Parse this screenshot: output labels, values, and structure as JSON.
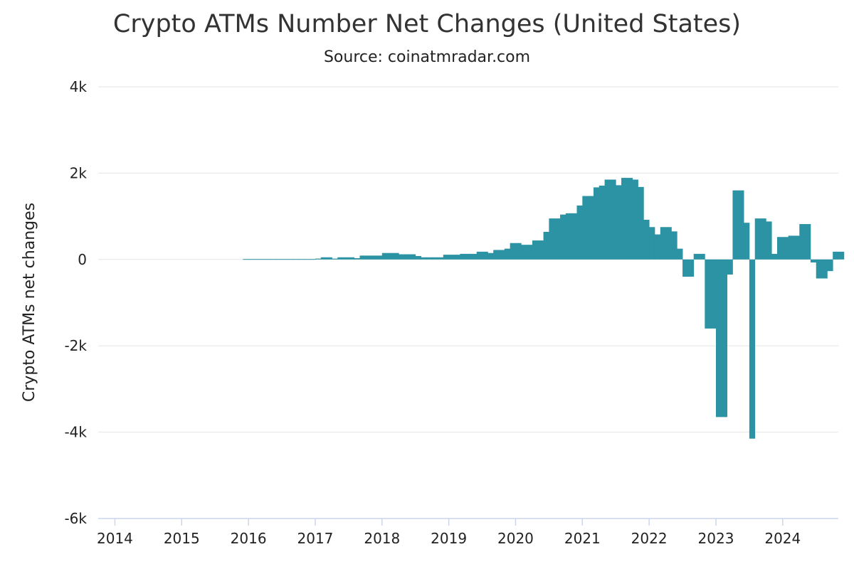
{
  "chart_data": {
    "type": "bar",
    "title": "Crypto ATMs Number Net Changes (United States)",
    "subtitle": "Source: coinatmradar.com",
    "ylabel": "Crypto ATMs net changes",
    "xlabel": "",
    "ylim": [
      -6000,
      4000
    ],
    "yticks": [
      {
        "value": 4000,
        "label": "4k"
      },
      {
        "value": 2000,
        "label": "2k"
      },
      {
        "value": 0,
        "label": "0"
      },
      {
        "value": -2000,
        "label": "-2k"
      },
      {
        "value": -4000,
        "label": "-4k"
      },
      {
        "value": -6000,
        "label": "-6k"
      }
    ],
    "xlim": [
      "2013-10",
      "2024-10"
    ],
    "xticks": [
      "2014",
      "2015",
      "2016",
      "2017",
      "2018",
      "2019",
      "2020",
      "2021",
      "2022",
      "2023",
      "2024"
    ],
    "grid": true,
    "color": "#2b93a3",
    "series": [
      {
        "points": [
          {
            "x": "2015-12",
            "y": 10
          },
          {
            "x": "2016-01",
            "y": 10
          },
          {
            "x": "2016-02",
            "y": 10
          },
          {
            "x": "2016-03",
            "y": 10
          },
          {
            "x": "2016-04",
            "y": 10
          },
          {
            "x": "2016-05",
            "y": 10
          },
          {
            "x": "2016-06",
            "y": 10
          },
          {
            "x": "2016-07",
            "y": 10
          },
          {
            "x": "2016-08",
            "y": 10
          },
          {
            "x": "2016-09",
            "y": 10
          },
          {
            "x": "2016-10",
            "y": 10
          },
          {
            "x": "2016-11",
            "y": 10
          },
          {
            "x": "2016-12",
            "y": 10
          },
          {
            "x": "2017-01",
            "y": 20
          },
          {
            "x": "2017-02",
            "y": 50
          },
          {
            "x": "2017-03",
            "y": 50
          },
          {
            "x": "2017-04",
            "y": 20
          },
          {
            "x": "2017-05",
            "y": 50
          },
          {
            "x": "2017-06",
            "y": 50
          },
          {
            "x": "2017-07",
            "y": 50
          },
          {
            "x": "2017-08",
            "y": 30
          },
          {
            "x": "2017-09",
            "y": 90
          },
          {
            "x": "2017-10",
            "y": 90
          },
          {
            "x": "2017-11",
            "y": 90
          },
          {
            "x": "2017-12",
            "y": 90
          },
          {
            "x": "2018-01",
            "y": 150
          },
          {
            "x": "2018-02",
            "y": 150
          },
          {
            "x": "2018-03",
            "y": 150
          },
          {
            "x": "2018-04",
            "y": 120
          },
          {
            "x": "2018-05",
            "y": 120
          },
          {
            "x": "2018-06",
            "y": 120
          },
          {
            "x": "2018-07",
            "y": 80
          },
          {
            "x": "2018-08",
            "y": 50
          },
          {
            "x": "2018-09",
            "y": 50
          },
          {
            "x": "2018-10",
            "y": 50
          },
          {
            "x": "2018-11",
            "y": 50
          },
          {
            "x": "2018-12",
            "y": 110
          },
          {
            "x": "2019-01",
            "y": 110
          },
          {
            "x": "2019-02",
            "y": 110
          },
          {
            "x": "2019-03",
            "y": 130
          },
          {
            "x": "2019-04",
            "y": 130
          },
          {
            "x": "2019-05",
            "y": 130
          },
          {
            "x": "2019-06",
            "y": 180
          },
          {
            "x": "2019-07",
            "y": 180
          },
          {
            "x": "2019-08",
            "y": 150
          },
          {
            "x": "2019-09",
            "y": 220
          },
          {
            "x": "2019-10",
            "y": 220
          },
          {
            "x": "2019-11",
            "y": 250
          },
          {
            "x": "2019-12",
            "y": 380
          },
          {
            "x": "2020-01",
            "y": 380
          },
          {
            "x": "2020-02",
            "y": 340
          },
          {
            "x": "2020-03",
            "y": 340
          },
          {
            "x": "2020-04",
            "y": 440
          },
          {
            "x": "2020-05",
            "y": 440
          },
          {
            "x": "2020-06",
            "y": 640
          },
          {
            "x": "2020-07",
            "y": 950
          },
          {
            "x": "2020-08",
            "y": 950
          },
          {
            "x": "2020-09",
            "y": 1040
          },
          {
            "x": "2020-10",
            "y": 1070
          },
          {
            "x": "2020-11",
            "y": 1070
          },
          {
            "x": "2020-12",
            "y": 1250
          },
          {
            "x": "2021-01",
            "y": 1470
          },
          {
            "x": "2021-02",
            "y": 1470
          },
          {
            "x": "2021-03",
            "y": 1670
          },
          {
            "x": "2021-04",
            "y": 1710
          },
          {
            "x": "2021-05",
            "y": 1850
          },
          {
            "x": "2021-06",
            "y": 1850
          },
          {
            "x": "2021-07",
            "y": 1720
          },
          {
            "x": "2021-08",
            "y": 1890
          },
          {
            "x": "2021-09",
            "y": 1890
          },
          {
            "x": "2021-10",
            "y": 1850
          },
          {
            "x": "2021-11",
            "y": 1680
          },
          {
            "x": "2021-12",
            "y": 920
          },
          {
            "x": "2022-01",
            "y": 750
          },
          {
            "x": "2022-02",
            "y": 580
          },
          {
            "x": "2022-03",
            "y": 750
          },
          {
            "x": "2022-04",
            "y": 750
          },
          {
            "x": "2022-05",
            "y": 650
          },
          {
            "x": "2022-06",
            "y": 250
          },
          {
            "x": "2022-07",
            "y": -400
          },
          {
            "x": "2022-08",
            "y": -400
          },
          {
            "x": "2022-09",
            "y": 130
          },
          {
            "x": "2022-10",
            "y": 130
          },
          {
            "x": "2022-11",
            "y": -1600
          },
          {
            "x": "2022-12",
            "y": -1600
          },
          {
            "x": "2023-01",
            "y": -3650
          },
          {
            "x": "2023-02",
            "y": -3650
          },
          {
            "x": "2023-03",
            "y": -350
          },
          {
            "x": "2023-04",
            "y": 1600
          },
          {
            "x": "2023-05",
            "y": 1600
          },
          {
            "x": "2023-06",
            "y": 850
          },
          {
            "x": "2023-07",
            "y": -4150
          },
          {
            "x": "2023-08",
            "y": 950
          },
          {
            "x": "2023-09",
            "y": 950
          },
          {
            "x": "2023-10",
            "y": 880
          },
          {
            "x": "2023-11",
            "y": 130
          },
          {
            "x": "2023-12",
            "y": 520
          },
          {
            "x": "2024-01",
            "y": 520
          },
          {
            "x": "2024-02",
            "y": 550
          },
          {
            "x": "2024-03",
            "y": 550
          },
          {
            "x": "2024-04",
            "y": 820
          },
          {
            "x": "2024-05",
            "y": 820
          },
          {
            "x": "2024-06",
            "y": -70
          },
          {
            "x": "2024-07",
            "y": -440
          },
          {
            "x": "2024-08",
            "y": -440
          },
          {
            "x": "2024-09",
            "y": -270
          },
          {
            "x": "2024-10",
            "y": 180
          },
          {
            "x": "2024-11",
            "y": 180
          }
        ]
      }
    ]
  }
}
